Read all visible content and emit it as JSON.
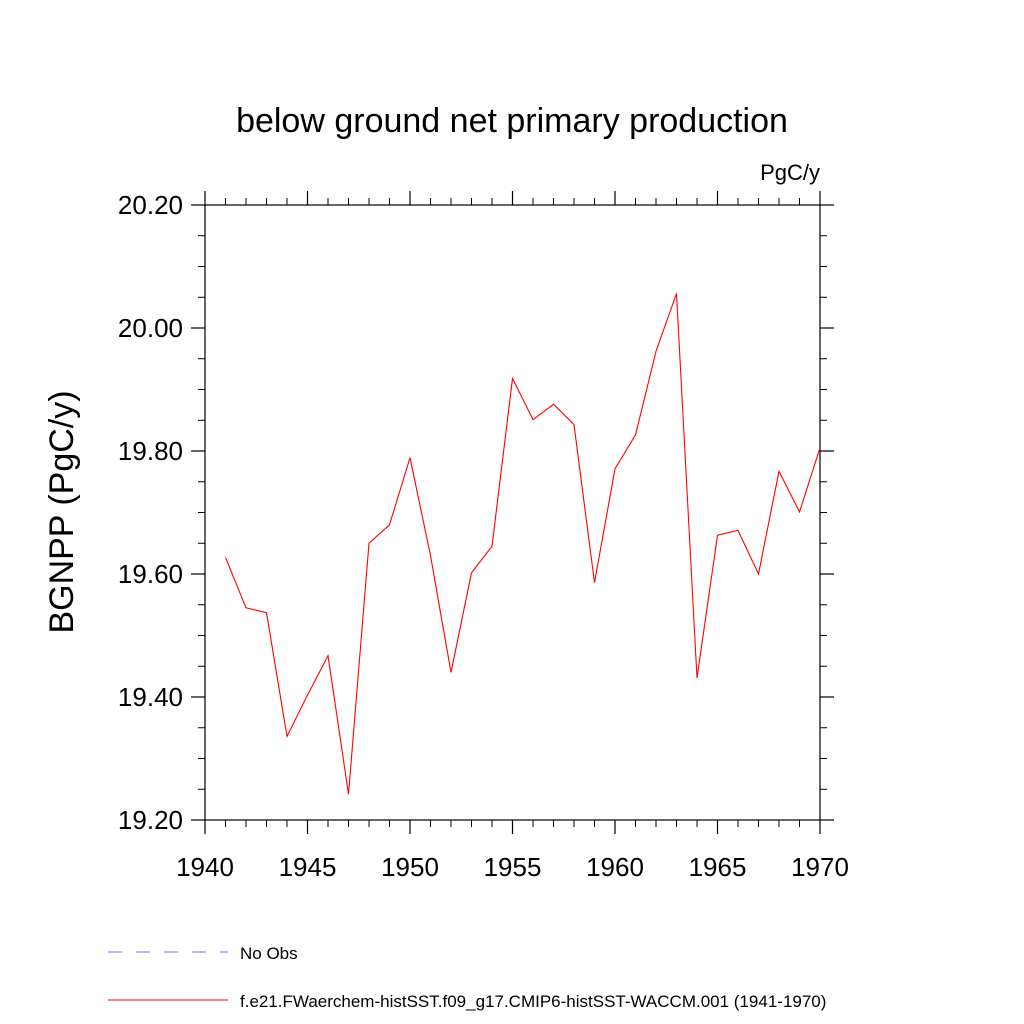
{
  "chart_data": {
    "type": "line",
    "title": "below ground net primary production",
    "units": "PgC/y",
    "xlabel": "",
    "ylabel": "BGNPP  (PgC/y)",
    "xlim": [
      1940,
      1970
    ],
    "ylim": [
      19.2,
      20.2
    ],
    "x_ticks": [
      1940,
      1945,
      1950,
      1955,
      1960,
      1965,
      1970
    ],
    "x_tick_labels": [
      "1940",
      "1945",
      "1950",
      "1955",
      "1960",
      "1965",
      "1970"
    ],
    "y_ticks": [
      19.2,
      19.4,
      19.6,
      19.8,
      20.0,
      20.2
    ],
    "y_tick_labels": [
      "19.20",
      "19.40",
      "19.60",
      "19.80",
      "20.00",
      "20.20"
    ],
    "grid": false,
    "legend_position": "bottom",
    "series": [
      {
        "name": "f.e21.FWaerchem-histSST.f09_g17.CMIP6-histSST-WACCM.001 (1941-1970)",
        "color": "#ff0000",
        "style": "solid",
        "x": [
          1941,
          1942,
          1943,
          1944,
          1945,
          1946,
          1947,
          1948,
          1949,
          1950,
          1951,
          1952,
          1953,
          1954,
          1955,
          1956,
          1957,
          1958,
          1959,
          1960,
          1961,
          1962,
          1963,
          1964,
          1965,
          1966,
          1967,
          1968,
          1969,
          1970
        ],
        "values": [
          19.627,
          19.545,
          19.537,
          19.336,
          19.403,
          19.467,
          19.242,
          19.65,
          19.68,
          19.789,
          19.63,
          19.44,
          19.602,
          19.645,
          19.918,
          19.851,
          19.876,
          19.843,
          19.586,
          19.771,
          19.826,
          19.962,
          20.056,
          19.431,
          19.663,
          19.671,
          19.6,
          19.767,
          19.701,
          19.805
        ]
      }
    ],
    "legend": [
      {
        "label": "No Obs",
        "color": "#7b68ee",
        "style": "dashed"
      },
      {
        "label": "f.e21.FWaerchem-histSST.f09_g17.CMIP6-histSST-WACCM.001 (1941-1970)",
        "color": "#ff0000",
        "style": "solid"
      }
    ]
  }
}
